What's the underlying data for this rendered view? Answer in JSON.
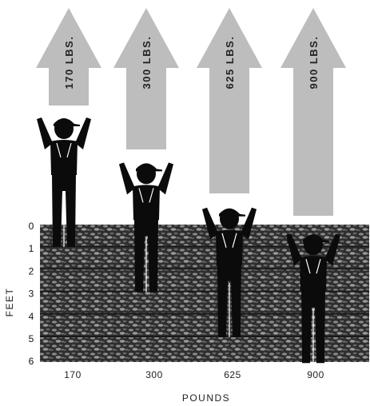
{
  "chart_data": {
    "type": "diagram",
    "depth_axis": {
      "label": "FEET",
      "ticks": [
        "0",
        "1",
        "2",
        "3",
        "4",
        "5",
        "6"
      ],
      "range": [
        0,
        6
      ]
    },
    "x_axis": {
      "label": "POUNDS"
    },
    "figures": [
      {
        "pounds_label": "170",
        "arrow_label": "170 LBS.",
        "depth_ft": 0
      },
      {
        "pounds_label": "300",
        "arrow_label": "300 LBS.",
        "depth_ft": 2
      },
      {
        "pounds_label": "625",
        "arrow_label": "625 LBS.",
        "depth_ft": 4
      },
      {
        "pounds_label": "900",
        "arrow_label": "900 LBS.",
        "depth_ft": 6
      }
    ]
  },
  "colors": {
    "arrow": "#bdbdbd",
    "figure": "#0b0b0b",
    "ground": "#2e2e2e",
    "ground_light": "#8a8a8a"
  }
}
